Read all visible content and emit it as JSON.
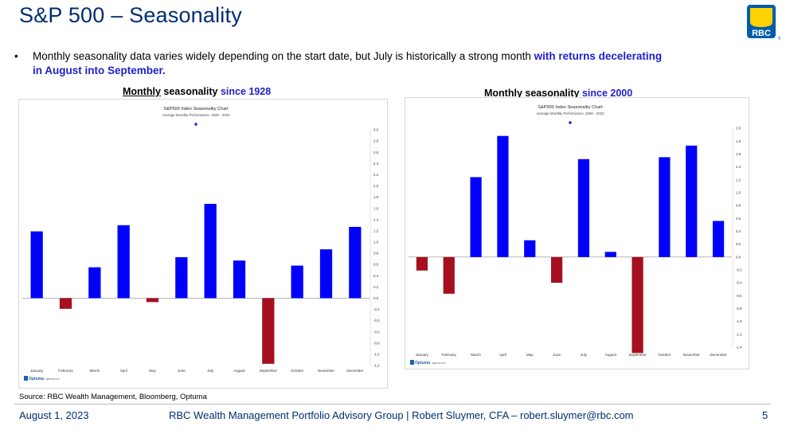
{
  "slide": {
    "title": "S&P 500 – Seasonality",
    "bullet_main": "Monthly seasonality data varies widely depending on the start date, but July is historically a strong month ",
    "bullet_highlight": "with returns decelerating in August into September",
    "bullet_end": ".",
    "source": "Source: RBC Wealth Management, Bloomberg, Optuma",
    "logo_text": "RBC",
    "colors": {
      "title": "#002d72",
      "highlight": "#1f1fcc",
      "positive_bar": "#0000ff",
      "negative_bar": "#a50f1e"
    }
  },
  "footer": {
    "date": "August 1, 2023",
    "center": "RBC Wealth Management Portfolio Advisory Group  |  Robert Sluymer, CFA – robert.sluymer@rbc.com",
    "page": "5"
  },
  "headings": {
    "left": {
      "underlined": "Monthly",
      "plain": " seasonality ",
      "blue": "since 1928"
    },
    "right": {
      "underlined": "Monthly",
      "plain": " seasonality ",
      "blue": "since 2000"
    }
  },
  "chart_data": [
    {
      "type": "bar",
      "title": "S&P500 Index Seasonality Chart",
      "subtitle": "Average Monthly Performance, 1928 - 2023",
      "categories": [
        "January",
        "February",
        "March",
        "April",
        "May",
        "June",
        "July",
        "August",
        "September",
        "October",
        "November",
        "December"
      ],
      "values": [
        1.19,
        -0.19,
        0.55,
        1.3,
        -0.07,
        0.73,
        1.68,
        0.67,
        -1.17,
        0.58,
        0.87,
        1.27
      ],
      "ylim": [
        -1.2,
        3.0
      ],
      "yticks": [
        "3.0",
        "2.8",
        "2.6",
        "2.4",
        "2.2",
        "2.0",
        "1.8",
        "1.6",
        "1.4",
        "1.2",
        "1.0",
        "0.8",
        "0.6",
        "0.4",
        "0.2",
        "0.0",
        "-0.2",
        "-0.4",
        "-0.6",
        "-0.8",
        "-1.0",
        "-1.2"
      ],
      "grid": false,
      "logo_text": "Optuma",
      "logo_url_text": "optuma.com"
    },
    {
      "type": "bar",
      "title": "S&P500 Index Seasonality Chart",
      "subtitle": "Average Monthly Performance, 2000 - 2023",
      "categories": [
        "January",
        "February",
        "March",
        "April",
        "May",
        "June",
        "July",
        "August",
        "September",
        "October",
        "November",
        "December"
      ],
      "values": [
        -0.21,
        -0.57,
        1.24,
        1.88,
        0.26,
        -0.4,
        1.52,
        0.08,
        -1.49,
        1.55,
        1.73,
        0.56
      ],
      "ylim": [
        -1.4,
        2.0
      ],
      "yticks": [
        "2.0",
        "1.8",
        "1.6",
        "1.4",
        "1.2",
        "1.0",
        "0.8",
        "0.6",
        "0.4",
        "0.2",
        "0.0",
        "-0.2",
        "-0.4",
        "-0.6",
        "-0.8",
        "-1.0",
        "-1.2",
        "-1.4"
      ],
      "grid": false,
      "logo_text": "Optuma",
      "logo_url_text": "optuma.com"
    }
  ]
}
